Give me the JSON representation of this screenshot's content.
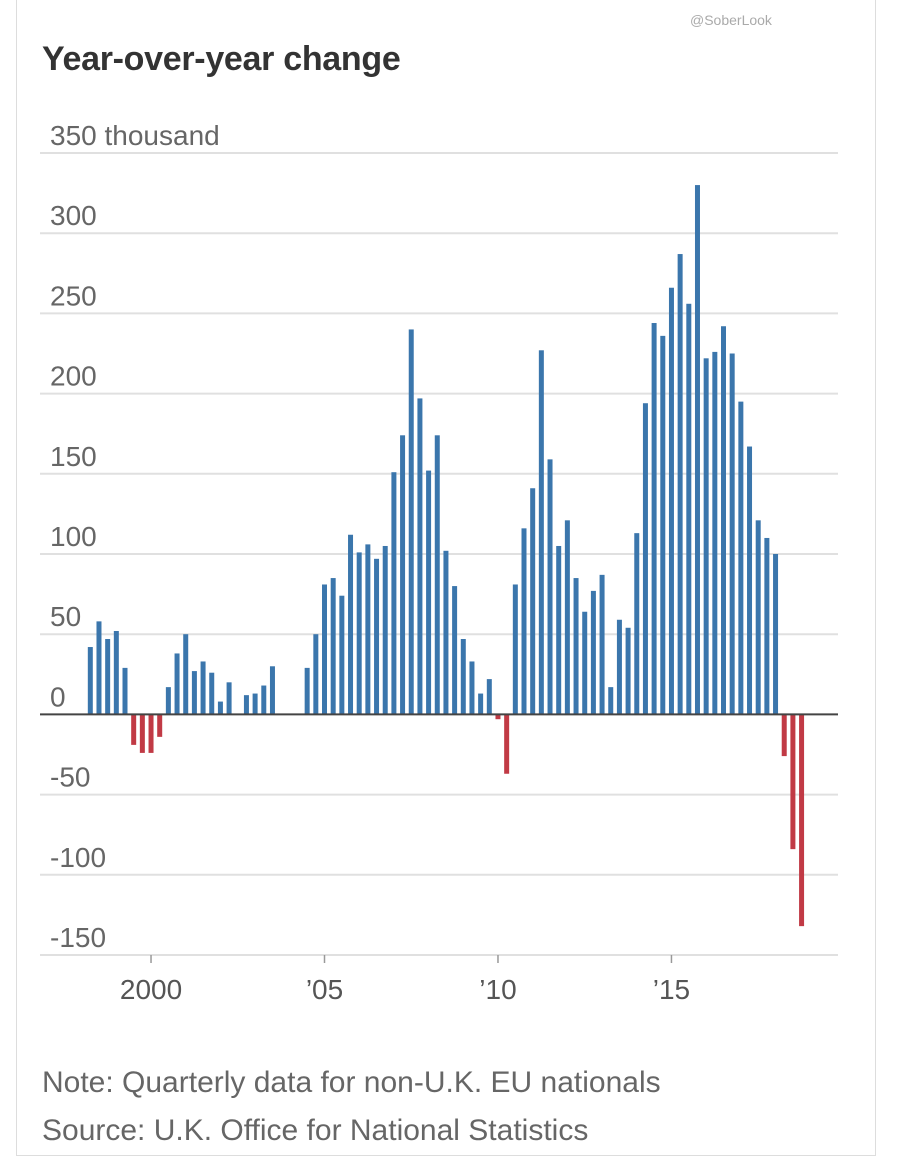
{
  "watermark": "@SoberLook",
  "title": "Year-over-year change",
  "note": "Note: Quarterly data for non-U.K. EU nationals",
  "source": "Source: U.K. Office for National Statistics",
  "colors": {
    "positive": "#3b76ac",
    "negative": "#c13a45",
    "grid": "#e0e0e0",
    "baseline": "#444444"
  },
  "chart_data": {
    "type": "bar",
    "title": "Year-over-year change",
    "ylim": [
      -150,
      350
    ],
    "yticks": [
      {
        "value": 350,
        "label": "350 thousand"
      },
      {
        "value": 300,
        "label": "300"
      },
      {
        "value": 250,
        "label": "250"
      },
      {
        "value": 200,
        "label": "200"
      },
      {
        "value": 150,
        "label": "150"
      },
      {
        "value": 100,
        "label": "100"
      },
      {
        "value": 50,
        "label": "50"
      },
      {
        "value": 0,
        "label": "0"
      },
      {
        "value": -50,
        "label": "-50"
      },
      {
        "value": -100,
        "label": "-100"
      },
      {
        "value": -150,
        "label": "-150"
      }
    ],
    "xticks": [
      {
        "value": 2000,
        "label": "2000"
      },
      {
        "value": 2005,
        "label": "’05"
      },
      {
        "value": 2010,
        "label": "’10"
      },
      {
        "value": 2015,
        "label": "’15"
      }
    ],
    "xlim": [
      1996.8,
      2019.8
    ],
    "grid": true,
    "bars": [
      {
        "x": 1998.25,
        "value": 42
      },
      {
        "x": 1998.5,
        "value": 58
      },
      {
        "x": 1998.75,
        "value": 47
      },
      {
        "x": 1999.0,
        "value": 52
      },
      {
        "x": 1999.25,
        "value": 29
      },
      {
        "x": 1999.5,
        "value": -19
      },
      {
        "x": 1999.75,
        "value": -24
      },
      {
        "x": 2000.0,
        "value": -24
      },
      {
        "x": 2000.25,
        "value": -14
      },
      {
        "x": 2000.5,
        "value": 17
      },
      {
        "x": 2000.75,
        "value": 38
      },
      {
        "x": 2001.0,
        "value": 50
      },
      {
        "x": 2001.25,
        "value": 27
      },
      {
        "x": 2001.5,
        "value": 33
      },
      {
        "x": 2001.75,
        "value": 26
      },
      {
        "x": 2002.0,
        "value": 8
      },
      {
        "x": 2002.25,
        "value": 20
      },
      {
        "x": 2002.75,
        "value": 12
      },
      {
        "x": 2003.0,
        "value": 13
      },
      {
        "x": 2003.25,
        "value": 18
      },
      {
        "x": 2003.5,
        "value": 30
      },
      {
        "x": 2004.5,
        "value": 29
      },
      {
        "x": 2004.75,
        "value": 50
      },
      {
        "x": 2005.0,
        "value": 81
      },
      {
        "x": 2005.25,
        "value": 85
      },
      {
        "x": 2005.5,
        "value": 74
      },
      {
        "x": 2005.75,
        "value": 112
      },
      {
        "x": 2006.0,
        "value": 101
      },
      {
        "x": 2006.25,
        "value": 106
      },
      {
        "x": 2006.5,
        "value": 97
      },
      {
        "x": 2006.75,
        "value": 105
      },
      {
        "x": 2007.0,
        "value": 151
      },
      {
        "x": 2007.25,
        "value": 174
      },
      {
        "x": 2007.5,
        "value": 240
      },
      {
        "x": 2007.75,
        "value": 197
      },
      {
        "x": 2008.0,
        "value": 152
      },
      {
        "x": 2008.25,
        "value": 174
      },
      {
        "x": 2008.5,
        "value": 102
      },
      {
        "x": 2008.75,
        "value": 80
      },
      {
        "x": 2009.0,
        "value": 47
      },
      {
        "x": 2009.25,
        "value": 33
      },
      {
        "x": 2009.5,
        "value": 13
      },
      {
        "x": 2009.75,
        "value": 22
      },
      {
        "x": 2010.0,
        "value": -3
      },
      {
        "x": 2010.25,
        "value": -37
      },
      {
        "x": 2010.5,
        "value": 81
      },
      {
        "x": 2010.75,
        "value": 116
      },
      {
        "x": 2011.0,
        "value": 141
      },
      {
        "x": 2011.25,
        "value": 227
      },
      {
        "x": 2011.5,
        "value": 159
      },
      {
        "x": 2011.75,
        "value": 105
      },
      {
        "x": 2012.0,
        "value": 121
      },
      {
        "x": 2012.25,
        "value": 85
      },
      {
        "x": 2012.5,
        "value": 64
      },
      {
        "x": 2012.75,
        "value": 77
      },
      {
        "x": 2013.0,
        "value": 87
      },
      {
        "x": 2013.25,
        "value": 17
      },
      {
        "x": 2013.5,
        "value": 59
      },
      {
        "x": 2013.75,
        "value": 54
      },
      {
        "x": 2014.0,
        "value": 113
      },
      {
        "x": 2014.25,
        "value": 194
      },
      {
        "x": 2014.5,
        "value": 244
      },
      {
        "x": 2014.75,
        "value": 236
      },
      {
        "x": 2015.0,
        "value": 266
      },
      {
        "x": 2015.25,
        "value": 287
      },
      {
        "x": 2015.5,
        "value": 256
      },
      {
        "x": 2015.75,
        "value": 330
      },
      {
        "x": 2016.0,
        "value": 222
      },
      {
        "x": 2016.25,
        "value": 226
      },
      {
        "x": 2016.5,
        "value": 242
      },
      {
        "x": 2016.75,
        "value": 225
      },
      {
        "x": 2017.0,
        "value": 195
      },
      {
        "x": 2017.25,
        "value": 167
      },
      {
        "x": 2017.5,
        "value": 121
      },
      {
        "x": 2017.75,
        "value": 110
      },
      {
        "x": 2018.0,
        "value": 100
      },
      {
        "x": 2018.25,
        "value": -26
      },
      {
        "x": 2018.5,
        "value": -84
      },
      {
        "x": 2018.75,
        "value": -132
      }
    ]
  }
}
